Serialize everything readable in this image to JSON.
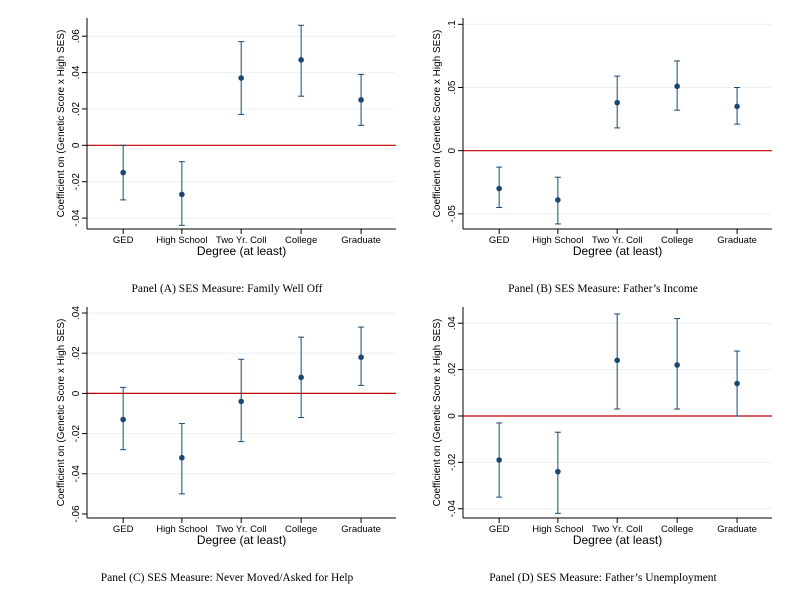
{
  "figure": {
    "colors": {
      "marker": "#1a476f",
      "zero_line": "#c00000",
      "grid": "#eaf2f3",
      "axis": "#000000"
    }
  },
  "chart_data": [
    {
      "type": "scatter",
      "caption": "Panel (A) SES Measure: Family Well Off",
      "xlabel": "Degree (at least)",
      "ylabel": "Coefficient on (Genetic Score x High SES)",
      "categories": [
        "GED",
        "High School",
        "Two Yr. Coll",
        "College",
        "Graduate"
      ],
      "ylim": [
        -0.046,
        0.07
      ],
      "yticks": [
        -0.04,
        -0.02,
        0,
        0.02,
        0.04,
        0.06
      ],
      "ytick_labels": [
        "-.04",
        "-.02",
        "0",
        ".02",
        ".04",
        ".06"
      ],
      "reference_line": 0,
      "grid": true,
      "values": [
        -0.015,
        -0.027,
        0.037,
        0.047,
        0.025
      ],
      "ci_lower": [
        -0.03,
        -0.044,
        0.017,
        0.027,
        0.011
      ],
      "ci_upper": [
        0.0,
        -0.009,
        0.057,
        0.066,
        0.039
      ]
    },
    {
      "type": "scatter",
      "caption": "Panel (B) SES Measure: Father’s Income",
      "xlabel": "Degree (at least)",
      "ylabel": "Coefficient on (Genetic Score x High SES)",
      "categories": [
        "GED",
        "High School",
        "Two Yr. Coll",
        "College",
        "Graduate"
      ],
      "ylim": [
        -0.062,
        0.105
      ],
      "yticks": [
        -0.05,
        0,
        0.05,
        0.1
      ],
      "ytick_labels": [
        "-.05",
        "0",
        ".05",
        ".1"
      ],
      "reference_line": 0,
      "grid": true,
      "values": [
        -0.03,
        -0.039,
        0.038,
        0.051,
        0.035
      ],
      "ci_lower": [
        -0.045,
        -0.058,
        0.018,
        0.032,
        0.021
      ],
      "ci_upper": [
        -0.013,
        -0.021,
        0.059,
        0.071,
        0.05
      ]
    },
    {
      "type": "scatter",
      "caption": "Panel (C) SES Measure: Never Moved/Asked for Help",
      "xlabel": "Degree (at least)",
      "ylabel": "Coefficient on (Genetic Score x High SES)",
      "categories": [
        "GED",
        "High School",
        "Two Yr. Coll",
        "College",
        "Graduate"
      ],
      "ylim": [
        -0.062,
        0.043
      ],
      "yticks": [
        -0.06,
        -0.04,
        -0.02,
        0,
        0.02,
        0.04
      ],
      "ytick_labels": [
        "-.06",
        "-.04",
        "-.02",
        "0",
        ".02",
        ".04"
      ],
      "reference_line": 0,
      "grid": true,
      "values": [
        -0.013,
        -0.032,
        -0.004,
        0.008,
        0.018
      ],
      "ci_lower": [
        -0.028,
        -0.05,
        -0.024,
        -0.012,
        0.004
      ],
      "ci_upper": [
        0.003,
        -0.015,
        0.017,
        0.028,
        0.033
      ]
    },
    {
      "type": "scatter",
      "caption": "Panel (D) SES Measure: Father’s Unemployment",
      "xlabel": "Degree (at least)",
      "ylabel": "Coefficient on (Genetic Score x High SES)",
      "categories": [
        "GED",
        "High School",
        "Two Yr. Coll",
        "College",
        "Graduate"
      ],
      "ylim": [
        -0.044,
        0.047
      ],
      "yticks": [
        -0.04,
        -0.02,
        0,
        0.02,
        0.04
      ],
      "ytick_labels": [
        "-.04",
        "-.02",
        "0",
        ".02",
        ".04"
      ],
      "reference_line": 0,
      "grid": true,
      "values": [
        -0.019,
        -0.024,
        0.024,
        0.022,
        0.014
      ],
      "ci_lower": [
        -0.035,
        -0.042,
        0.003,
        0.003,
        0.0
      ],
      "ci_upper": [
        -0.003,
        -0.007,
        0.044,
        0.042,
        0.028
      ]
    }
  ]
}
